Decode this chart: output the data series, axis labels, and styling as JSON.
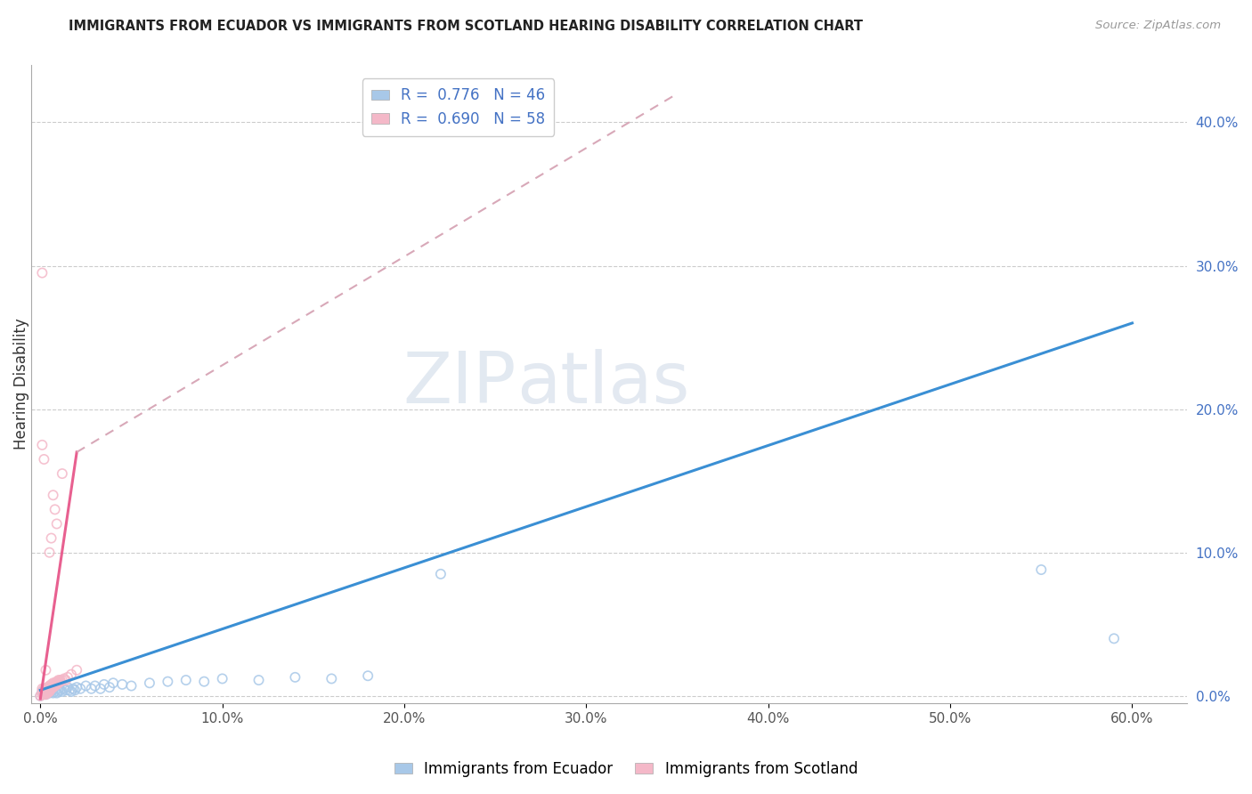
{
  "title": "IMMIGRANTS FROM ECUADOR VS IMMIGRANTS FROM SCOTLAND HEARING DISABILITY CORRELATION CHART",
  "source": "Source: ZipAtlas.com",
  "xlabel_ticks": [
    "0.0%",
    "10.0%",
    "20.0%",
    "30.0%",
    "40.0%",
    "50.0%",
    "60.0%"
  ],
  "xlabel_vals": [
    0.0,
    0.1,
    0.2,
    0.3,
    0.4,
    0.5,
    0.6
  ],
  "ylabel": "Hearing Disability",
  "ylabel_ticks": [
    "0.0%",
    "10.0%",
    "20.0%",
    "30.0%",
    "40.0%"
  ],
  "ylabel_vals": [
    0.0,
    0.1,
    0.2,
    0.3,
    0.4
  ],
  "xlim": [
    -0.005,
    0.63
  ],
  "ylim": [
    -0.005,
    0.44
  ],
  "ecuador_color": "#a8c8e8",
  "scotland_color": "#f4b8c8",
  "ecuador_R": 0.776,
  "ecuador_N": 46,
  "scotland_R": 0.69,
  "scotland_N": 58,
  "ecuador_line_color": "#3a8fd4",
  "scotland_line_color": "#e86090",
  "scotland_dashed_color": "#d8a8b8",
  "watermark_zip": "ZIP",
  "watermark_atlas": "atlas",
  "ecuador_scatter": [
    [
      0.0,
      0.0
    ],
    [
      0.001,
      0.003
    ],
    [
      0.002,
      0.002
    ],
    [
      0.003,
      0.001
    ],
    [
      0.004,
      0.004
    ],
    [
      0.005,
      0.003
    ],
    [
      0.005,
      0.002
    ],
    [
      0.006,
      0.003
    ],
    [
      0.007,
      0.004
    ],
    [
      0.007,
      0.002
    ],
    [
      0.008,
      0.003
    ],
    [
      0.009,
      0.002
    ],
    [
      0.01,
      0.005
    ],
    [
      0.01,
      0.003
    ],
    [
      0.011,
      0.004
    ],
    [
      0.012,
      0.003
    ],
    [
      0.013,
      0.005
    ],
    [
      0.014,
      0.004
    ],
    [
      0.015,
      0.006
    ],
    [
      0.016,
      0.004
    ],
    [
      0.017,
      0.003
    ],
    [
      0.018,
      0.005
    ],
    [
      0.019,
      0.004
    ],
    [
      0.02,
      0.006
    ],
    [
      0.022,
      0.005
    ],
    [
      0.025,
      0.007
    ],
    [
      0.028,
      0.005
    ],
    [
      0.03,
      0.007
    ],
    [
      0.033,
      0.005
    ],
    [
      0.035,
      0.008
    ],
    [
      0.038,
      0.006
    ],
    [
      0.04,
      0.009
    ],
    [
      0.045,
      0.008
    ],
    [
      0.05,
      0.007
    ],
    [
      0.06,
      0.009
    ],
    [
      0.07,
      0.01
    ],
    [
      0.08,
      0.011
    ],
    [
      0.09,
      0.01
    ],
    [
      0.1,
      0.012
    ],
    [
      0.12,
      0.011
    ],
    [
      0.14,
      0.013
    ],
    [
      0.16,
      0.012
    ],
    [
      0.18,
      0.014
    ],
    [
      0.22,
      0.085
    ],
    [
      0.55,
      0.088
    ],
    [
      0.59,
      0.04
    ]
  ],
  "scotland_scatter": [
    [
      0.0,
      0.0
    ],
    [
      0.001,
      0.001
    ],
    [
      0.002,
      0.001
    ],
    [
      0.003,
      0.001
    ],
    [
      0.001,
      0.002
    ],
    [
      0.002,
      0.002
    ],
    [
      0.003,
      0.002
    ],
    [
      0.004,
      0.002
    ],
    [
      0.002,
      0.003
    ],
    [
      0.003,
      0.003
    ],
    [
      0.004,
      0.003
    ],
    [
      0.005,
      0.003
    ],
    [
      0.003,
      0.004
    ],
    [
      0.004,
      0.004
    ],
    [
      0.005,
      0.004
    ],
    [
      0.001,
      0.005
    ],
    [
      0.002,
      0.005
    ],
    [
      0.003,
      0.005
    ],
    [
      0.004,
      0.005
    ],
    [
      0.005,
      0.005
    ],
    [
      0.006,
      0.005
    ],
    [
      0.004,
      0.006
    ],
    [
      0.005,
      0.006
    ],
    [
      0.006,
      0.006
    ],
    [
      0.007,
      0.006
    ],
    [
      0.005,
      0.007
    ],
    [
      0.006,
      0.007
    ],
    [
      0.007,
      0.007
    ],
    [
      0.008,
      0.007
    ],
    [
      0.006,
      0.008
    ],
    [
      0.007,
      0.008
    ],
    [
      0.008,
      0.008
    ],
    [
      0.009,
      0.008
    ],
    [
      0.007,
      0.009
    ],
    [
      0.008,
      0.009
    ],
    [
      0.009,
      0.009
    ],
    [
      0.01,
      0.009
    ],
    [
      0.009,
      0.01
    ],
    [
      0.01,
      0.01
    ],
    [
      0.011,
      0.01
    ],
    [
      0.01,
      0.011
    ],
    [
      0.011,
      0.011
    ],
    [
      0.012,
      0.011
    ],
    [
      0.013,
      0.012
    ],
    [
      0.014,
      0.011
    ],
    [
      0.015,
      0.013
    ],
    [
      0.017,
      0.015
    ],
    [
      0.02,
      0.018
    ],
    [
      0.003,
      0.018
    ],
    [
      0.001,
      0.175
    ],
    [
      0.002,
      0.165
    ],
    [
      0.012,
      0.155
    ],
    [
      0.001,
      0.295
    ],
    [
      0.007,
      0.14
    ],
    [
      0.008,
      0.13
    ],
    [
      0.009,
      0.12
    ],
    [
      0.006,
      0.11
    ],
    [
      0.005,
      0.1
    ]
  ],
  "ecuador_trendline": [
    [
      0.0,
      0.004
    ],
    [
      0.6,
      0.26
    ]
  ],
  "scotland_trendline_solid": [
    [
      0.0,
      -0.002
    ],
    [
      0.02,
      0.17
    ]
  ],
  "scotland_trendline_dashed": [
    [
      0.02,
      0.17
    ],
    [
      0.35,
      0.42
    ]
  ]
}
